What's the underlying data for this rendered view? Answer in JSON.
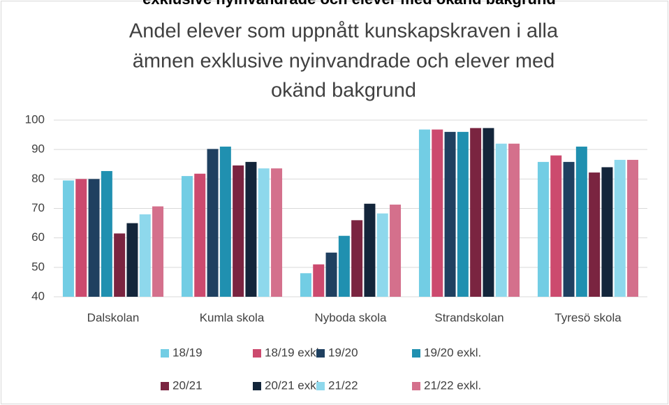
{
  "chart_data": {
    "type": "bar",
    "caption": "exklusive nyinvandrade och elever med okänd bakgrund",
    "title": [
      "Andel elever som uppnått kunskapskraven i alla",
      "ämnen exklusive nyinvandrade och elever med",
      "okänd bakgrund"
    ],
    "categories": [
      "Dalskolan",
      "Kumla skola",
      "Nyboda skola",
      "Strandskolan",
      "Tyresö skola"
    ],
    "series": [
      {
        "name": "18/19",
        "color": "#72cde4",
        "values": [
          79.5,
          81,
          48,
          96.8,
          85.8
        ]
      },
      {
        "name": "18/19 exkl.",
        "color": "#cc4a6e",
        "values": [
          80,
          81.8,
          51,
          96.8,
          88
        ]
      },
      {
        "name": "19/20",
        "color": "#1f4060",
        "values": [
          80,
          90.2,
          55,
          96,
          85.8
        ]
      },
      {
        "name": "19/20 exkl.",
        "color": "#2090b0",
        "values": [
          82.7,
          91,
          60.7,
          96,
          91
        ]
      },
      {
        "name": "20/21",
        "color": "#7a2440",
        "values": [
          61.5,
          84.6,
          66,
          97.3,
          82.2
        ]
      },
      {
        "name": "20/21 exkl.",
        "color": "#13253a",
        "values": [
          65,
          85.8,
          71.6,
          97.3,
          84
        ]
      },
      {
        "name": "21/22",
        "color": "#8ed8ec",
        "values": [
          68,
          83.6,
          68.3,
          92,
          86.5
        ]
      },
      {
        "name": "21/22 exkl.",
        "color": "#d4708c",
        "values": [
          70.7,
          83.6,
          71.3,
          92,
          86.5
        ]
      }
    ],
    "ylim": [
      40,
      100
    ],
    "yticks": [
      40,
      50,
      60,
      70,
      80,
      90,
      100
    ],
    "grid": true,
    "legend": "bottom"
  }
}
